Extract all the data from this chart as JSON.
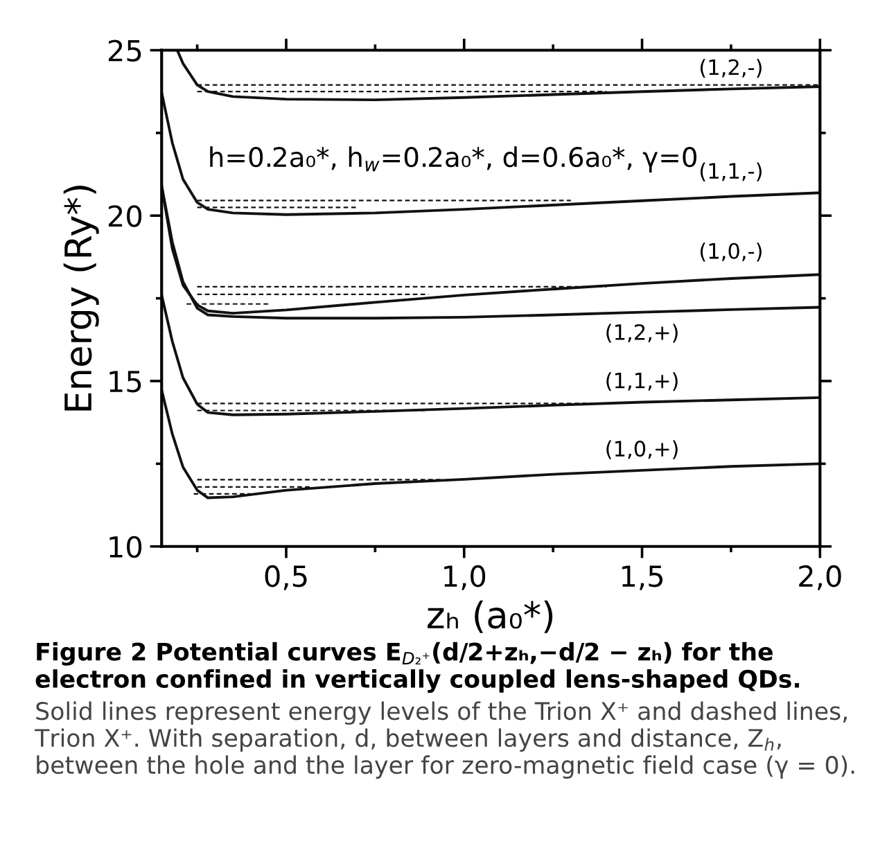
{
  "chart_data": {
    "type": "line",
    "xlabel": "zₕ (a₀*)",
    "ylabel": "Energy (Ry*)",
    "xlim": [
      0.15,
      2.0
    ],
    "ylim": [
      10,
      25
    ],
    "xticks": [
      {
        "value": 0.25,
        "label": null
      },
      {
        "value": 0.5,
        "label": "0,5"
      },
      {
        "value": 0.75,
        "label": null
      },
      {
        "value": 1.0,
        "label": "1,0"
      },
      {
        "value": 1.25,
        "label": null
      },
      {
        "value": 1.5,
        "label": "1,5"
      },
      {
        "value": 1.75,
        "label": null
      },
      {
        "value": 2.0,
        "label": "2,0"
      }
    ],
    "yticks": [
      10,
      {
        "value": 12.5,
        "label": null
      },
      15,
      {
        "value": 17.5,
        "label": null
      },
      20,
      {
        "value": 22.5,
        "label": null
      },
      25
    ],
    "series": [
      {
        "name": "(1,0,+)",
        "line_style": "solid",
        "color": "#111111",
        "x": [
          0.15,
          0.18,
          0.21,
          0.25,
          0.28,
          0.35,
          0.5,
          0.75,
          1.0,
          1.25,
          1.5,
          1.75,
          2.0
        ],
        "values": [
          14.73,
          13.4,
          12.4,
          11.7,
          11.47,
          11.5,
          11.7,
          11.9,
          12.03,
          12.18,
          12.3,
          12.42,
          12.5
        ]
      },
      {
        "name": "(1,1,+)",
        "line_style": "solid",
        "color": "#111111",
        "x": [
          0.15,
          0.18,
          0.21,
          0.25,
          0.28,
          0.35,
          0.5,
          0.75,
          1.0,
          1.25,
          1.5,
          1.75,
          2.0
        ],
        "values": [
          17.6,
          16.2,
          15.1,
          14.3,
          14.05,
          13.98,
          14.0,
          14.08,
          14.17,
          14.27,
          14.36,
          14.43,
          14.5
        ]
      },
      {
        "name": "(1,2,+)",
        "line_style": "solid",
        "color": "#111111",
        "x": [
          0.15,
          0.18,
          0.21,
          0.25,
          0.28,
          0.35,
          0.5,
          0.75,
          1.0,
          1.25,
          1.5,
          1.75,
          2.0
        ],
        "values": [
          20.9,
          19.2,
          18.0,
          17.2,
          17.0,
          16.95,
          16.9,
          16.9,
          16.93,
          17.0,
          17.08,
          17.16,
          17.23
        ]
      },
      {
        "name": "(1,0,-)",
        "line_style": "solid",
        "color": "#111111",
        "x": [
          0.15,
          0.18,
          0.21,
          0.25,
          0.28,
          0.35,
          0.5,
          0.75,
          1.0,
          1.25,
          1.5,
          1.75,
          2.0
        ],
        "values": [
          20.9,
          19.0,
          17.9,
          17.3,
          17.12,
          17.05,
          17.15,
          17.38,
          17.6,
          17.78,
          17.95,
          18.1,
          18.22
        ]
      },
      {
        "name": "(1,1,-)",
        "line_style": "solid",
        "color": "#111111",
        "x": [
          0.15,
          0.18,
          0.21,
          0.25,
          0.28,
          0.35,
          0.5,
          0.75,
          1.0,
          1.25,
          1.5,
          1.75,
          2.0
        ],
        "values": [
          23.72,
          22.2,
          21.1,
          20.4,
          20.19,
          20.08,
          20.03,
          20.08,
          20.19,
          20.32,
          20.45,
          20.58,
          20.69
        ]
      },
      {
        "name": "(1,2,-)",
        "line_style": "solid",
        "color": "#111111",
        "x": [
          0.194,
          0.21,
          0.25,
          0.28,
          0.35,
          0.5,
          0.75,
          1.0,
          1.25,
          1.5,
          1.75,
          2.0
        ],
        "values": [
          25.0,
          24.6,
          23.95,
          23.75,
          23.6,
          23.52,
          23.5,
          23.57,
          23.66,
          23.75,
          23.83,
          23.9
        ]
      },
      {
        "line_style": "dashed",
        "color": "#111111",
        "x": [
          0.25,
          2.0
        ],
        "values": [
          23.95,
          23.95
        ]
      },
      {
        "type": "line",
        "line_style": "dashed",
        "color": "#111111",
        "x": [
          0.25,
          1.4
        ],
        "values": [
          23.75,
          23.75
        ]
      },
      {
        "type": "line",
        "line_style": "dashed",
        "color": "#111111",
        "x": [
          0.25,
          1.3
        ],
        "values": [
          20.46,
          20.46
        ]
      },
      {
        "type": "line",
        "line_style": "dashed",
        "color": "#111111",
        "x": [
          0.25,
          0.7
        ],
        "values": [
          20.25,
          20.25
        ]
      },
      {
        "type": "line",
        "line_style": "dashed",
        "color": "#111111",
        "x": [
          0.25,
          1.4
        ],
        "values": [
          17.85,
          17.85
        ]
      },
      {
        "type": "line",
        "line_style": "dashed",
        "color": "#111111",
        "x": [
          0.25,
          0.9
        ],
        "values": [
          17.62,
          17.62
        ]
      },
      {
        "type": "line",
        "line_style": "dashed",
        "color": "#111111",
        "x": [
          0.22,
          0.45
        ],
        "values": [
          17.33,
          17.33
        ]
      },
      {
        "type": "line",
        "line_style": "dashed",
        "color": "#111111",
        "x": [
          0.25,
          1.38
        ],
        "values": [
          14.32,
          14.32
        ]
      },
      {
        "type": "line",
        "line_style": "dashed",
        "color": "#111111",
        "x": [
          0.25,
          0.89
        ],
        "values": [
          14.11,
          14.11
        ]
      },
      {
        "type": "line",
        "line_style": "dashed",
        "color": "#111111",
        "x": [
          0.25,
          0.94
        ],
        "values": [
          12.02,
          12.02
        ]
      },
      {
        "type": "line",
        "line_style": "dashed",
        "color": "#111111",
        "x": [
          0.25,
          0.57
        ],
        "values": [
          11.8,
          11.8
        ]
      },
      {
        "type": "line",
        "line_style": "dashed",
        "color": "#111111",
        "x": [
          0.24,
          0.4
        ],
        "values": [
          11.59,
          11.59
        ]
      }
    ],
    "annotations": [
      "h=0.2a₀*, h$_{w}$=0.2a₀*, d=0.6a₀*, γ=0",
      "Figure 2 Potential curves E$_{D₂⁺}$(d/2+zₕ,−d/2 − zₕ) for the electron confined in vertically coupled lens-shaped QDs.",
      "Solid lines represent energy levels of the Trion X⁺ and dashed lines, Trion X⁺. With separation, d, between layers and distance, Z$_{h}$, between the hole and the layer for zero-magnetic field case (γ = 0)."
    ]
  }
}
